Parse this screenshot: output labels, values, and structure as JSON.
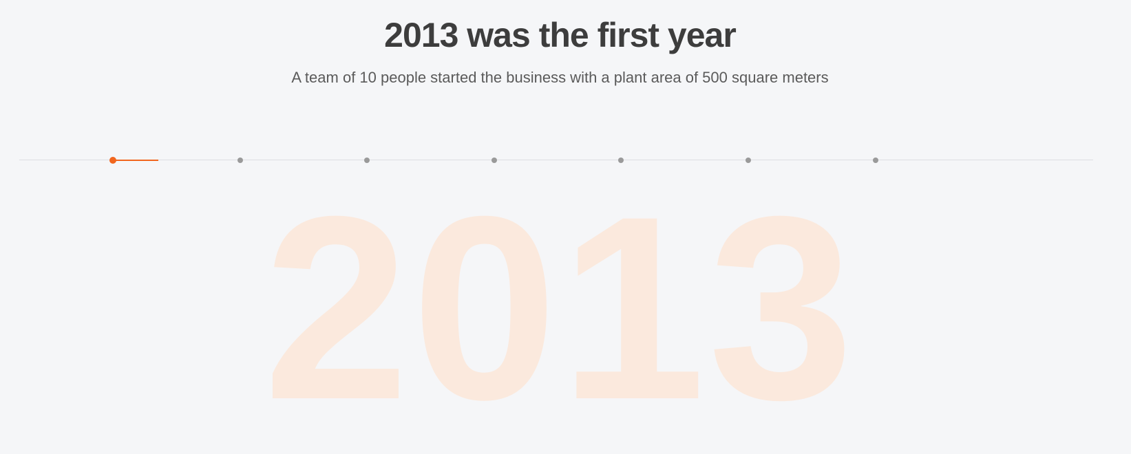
{
  "header": {
    "title": "2013 was the first year",
    "subtitle": "A team of 10 people started the business with a plant area of 500 square meters"
  },
  "timeline": {
    "dots": [
      {
        "state": "active"
      },
      {
        "state": "inactive"
      },
      {
        "state": "inactive"
      },
      {
        "state": "inactive"
      },
      {
        "state": "inactive"
      },
      {
        "state": "inactive"
      },
      {
        "state": "inactive"
      }
    ]
  },
  "watermark": {
    "year": "2013"
  },
  "colors": {
    "background": "#f5f6f8",
    "accent": "#f1661e",
    "watermark_text": "#fbe9dd",
    "title_text": "#3d3d3d",
    "subtitle_text": "#5a5a5a",
    "dot_inactive": "#9a9a9a",
    "track": "#dcdde1"
  }
}
